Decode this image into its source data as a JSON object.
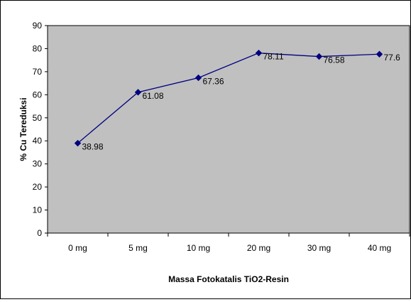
{
  "chart_data": {
    "type": "line",
    "categories": [
      "0 mg",
      "5 mg",
      "10 mg",
      "20 mg",
      "30 mg",
      "40 mg"
    ],
    "values": [
      38.98,
      61.08,
      67.36,
      78.11,
      76.58,
      77.6
    ],
    "data_labels": [
      "38.98",
      "61.08",
      "67.36",
      "78.11",
      "76.58",
      "77.6"
    ],
    "xlabel": "Massa Fotokatalis TiO2-Resin",
    "ylabel": "% Cu Tereduksi",
    "ylim": [
      0,
      90
    ],
    "yticks": [
      "0",
      "10",
      "20",
      "30",
      "40",
      "50",
      "60",
      "70",
      "80",
      "90"
    ],
    "grid": false,
    "legend": "none",
    "colors": {
      "plot_background": "#c0c0c0",
      "series": "#000080",
      "text": "#000000"
    }
  }
}
